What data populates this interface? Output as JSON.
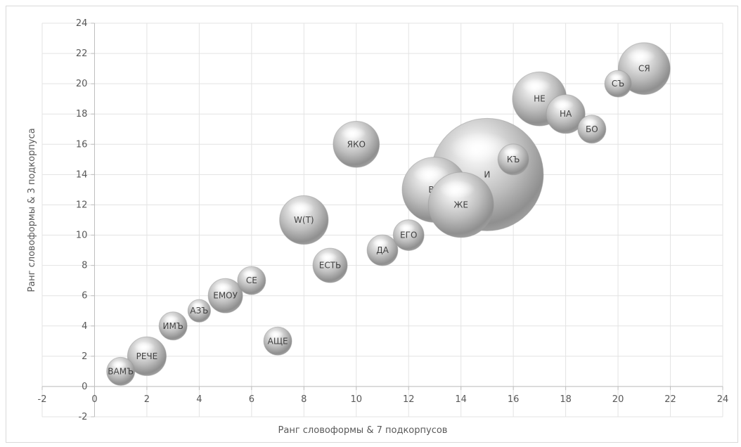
{
  "chart_data": {
    "type": "bubble",
    "xlabel": "Ранг словоформы & 7 подкорпусов",
    "ylabel": "Ранг словоформы & 3 подкорпуса",
    "xlim": [
      -2,
      24
    ],
    "ylim": [
      -2,
      24
    ],
    "xticks": [
      -2,
      0,
      2,
      4,
      6,
      8,
      10,
      12,
      14,
      16,
      18,
      20,
      22,
      24
    ],
    "yticks": [
      -2,
      0,
      2,
      4,
      6,
      8,
      10,
      12,
      14,
      16,
      18,
      20,
      22,
      24
    ],
    "grid": true,
    "bubble_color": "#b0b0b0",
    "points": [
      {
        "label": "ВАМЪ",
        "x": 1,
        "y": 1,
        "size": 1.0
      },
      {
        "label": "РЕЧЕ",
        "x": 2,
        "y": 2,
        "size": 1.9
      },
      {
        "label": "ИМЪ",
        "x": 3,
        "y": 4,
        "size": 1.0
      },
      {
        "label": "АЗЪ",
        "x": 4,
        "y": 5,
        "size": 0.65
      },
      {
        "label": "ЕМОУ",
        "x": 5,
        "y": 6,
        "size": 1.5
      },
      {
        "label": "СЕ",
        "x": 6,
        "y": 7,
        "size": 1.0
      },
      {
        "label": "АЩЕ",
        "x": 7,
        "y": 3,
        "size": 1.0
      },
      {
        "label": "W(T)",
        "x": 8,
        "y": 11,
        "size": 3.0
      },
      {
        "label": "ЕСТЬ",
        "x": 9,
        "y": 8,
        "size": 1.5
      },
      {
        "label": "ЯКО",
        "x": 10,
        "y": 16,
        "size": 2.7
      },
      {
        "label": "ДА",
        "x": 11,
        "y": 9,
        "size": 1.2
      },
      {
        "label": "ЕГО",
        "x": 12,
        "y": 10,
        "size": 1.2
      },
      {
        "label": "ВЪ",
        "x": 13,
        "y": 13,
        "size": 5.4
      },
      {
        "label": "ЖЕ",
        "x": 14,
        "y": 12,
        "size": 5.4
      },
      {
        "label": "И",
        "x": 15,
        "y": 14,
        "size": 16.0
      },
      {
        "label": "КЪ",
        "x": 16,
        "y": 15,
        "size": 1.2
      },
      {
        "label": "НЕ",
        "x": 17,
        "y": 19,
        "size": 3.7
      },
      {
        "label": "НА",
        "x": 18,
        "y": 18,
        "size": 1.9
      },
      {
        "label": "БО",
        "x": 19,
        "y": 17,
        "size": 1.0
      },
      {
        "label": "СЪ",
        "x": 20,
        "y": 20,
        "size": 0.9
      },
      {
        "label": "СЯ",
        "x": 21,
        "y": 21,
        "size": 3.4
      }
    ]
  }
}
